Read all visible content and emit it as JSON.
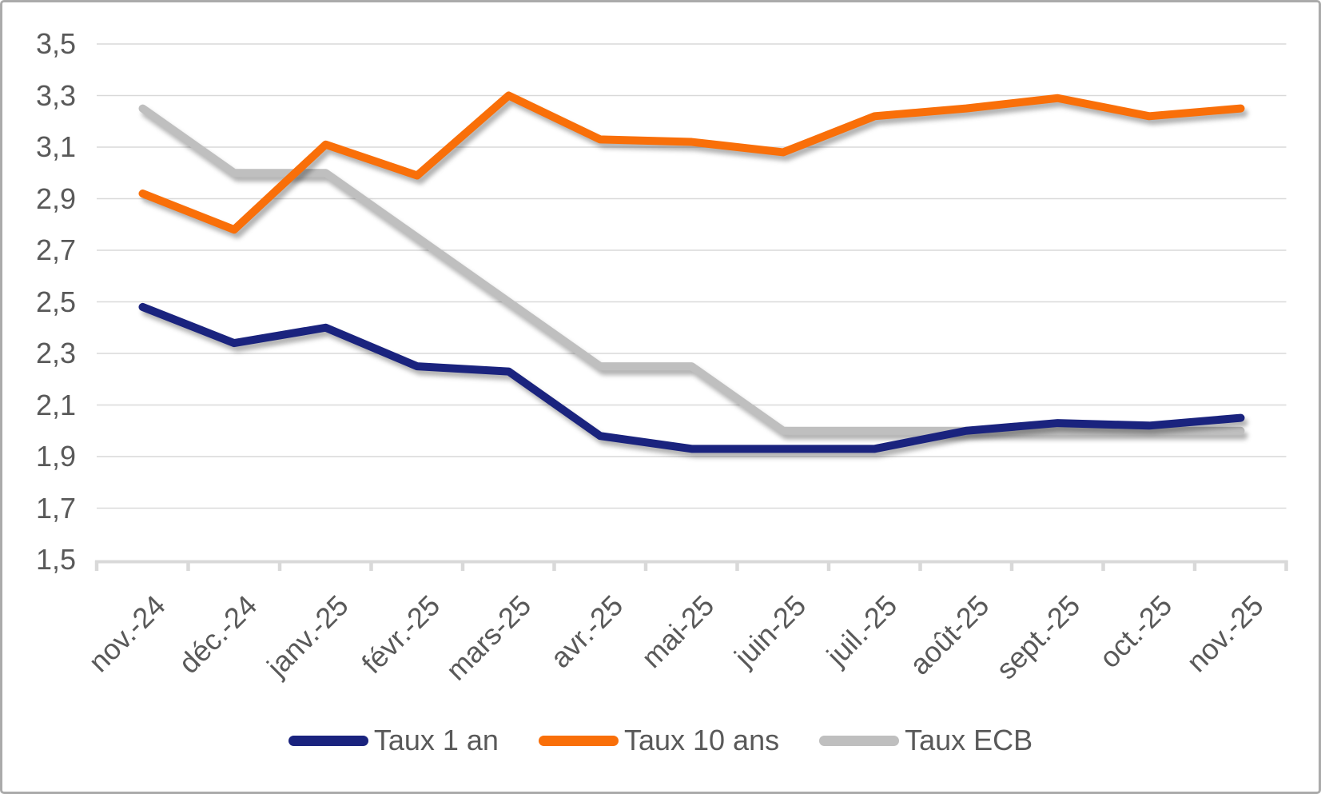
{
  "chart_data": {
    "type": "line",
    "title": "",
    "categories": [
      "nov.-24",
      "déc.-24",
      "janv.-25",
      "févr.-25",
      "mars-25",
      "avr.-25",
      "mai-25",
      "juin-25",
      "juil.-25",
      "août-25",
      "sept.-25",
      "oct.-25",
      "nov.-25"
    ],
    "series": [
      {
        "name": "Taux 1 an",
        "color": "#1a237e",
        "values": [
          2.48,
          2.34,
          2.4,
          2.25,
          2.23,
          1.98,
          1.93,
          1.93,
          1.93,
          2.0,
          2.03,
          2.02,
          2.05
        ]
      },
      {
        "name": "Taux 10 ans",
        "color": "#f96f09",
        "values": [
          2.92,
          2.78,
          3.11,
          2.99,
          3.3,
          3.13,
          3.12,
          3.08,
          3.22,
          3.25,
          3.29,
          3.22,
          3.25
        ]
      },
      {
        "name": "Taux ECB",
        "color": "#bfbfbf",
        "values": [
          3.25,
          3.0,
          3.0,
          2.75,
          2.5,
          2.25,
          2.25,
          2.0,
          2.0,
          2.0,
          2.0,
          2.0,
          2.0
        ]
      }
    ],
    "draw_order": [
      2,
      1,
      0
    ],
    "ylim": [
      1.5,
      3.5
    ],
    "y_tick_step": 0.2,
    "y_tick_labels": [
      "1,5",
      "1,7",
      "1,9",
      "2,1",
      "2,3",
      "2,5",
      "2,7",
      "2,9",
      "3,1",
      "3,3",
      "3,5"
    ],
    "decimal_separator": ",",
    "grid": true,
    "grid_color": "#d9d9d9",
    "axis_color": "#d9d9d9",
    "label_color": "#595959",
    "legend_position": "bottom",
    "line_width": 10
  }
}
